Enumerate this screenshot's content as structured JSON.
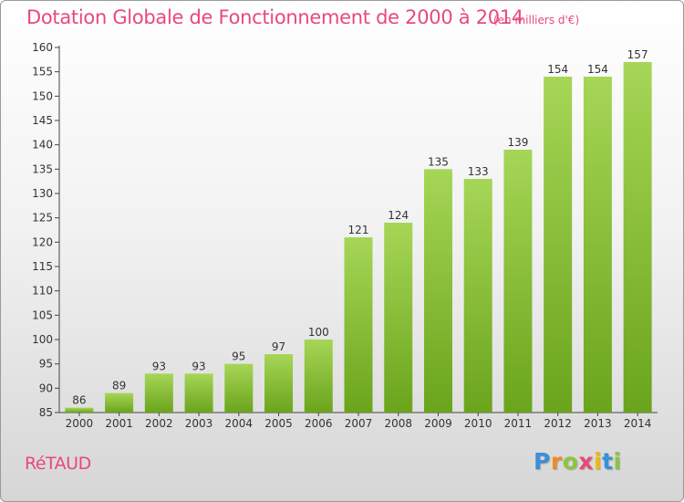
{
  "chart_data": {
    "type": "bar",
    "title": "Dotation Globale de Fonctionnement de 2000 à 2014",
    "subtitle": "(en milliers d'€)",
    "categories": [
      "2000",
      "2001",
      "2002",
      "2003",
      "2004",
      "2005",
      "2006",
      "2007",
      "2008",
      "2009",
      "2010",
      "2011",
      "2012",
      "2013",
      "2014"
    ],
    "values": [
      86,
      89,
      93,
      93,
      95,
      97,
      100,
      121,
      124,
      135,
      133,
      139,
      154,
      154,
      157
    ],
    "data_labels": [
      "86",
      "89",
      "93",
      "93",
      "95",
      "97",
      "100",
      "121",
      "124",
      "135",
      "133",
      "139",
      "154",
      "154",
      "157"
    ],
    "yticks": [
      85,
      90,
      95,
      100,
      105,
      110,
      115,
      120,
      125,
      130,
      135,
      140,
      145,
      150,
      155,
      160
    ],
    "ylim": [
      85,
      160
    ],
    "grid": false,
    "colors": {
      "bar_light": "#a6d656",
      "bar_dark": "#6aa41c"
    }
  },
  "footer": {
    "town": "RéTAUD",
    "logo_letters": [
      "P",
      "r",
      "o",
      "x",
      "i",
      "t",
      "i"
    ],
    "logo_colors": [
      "#3a8fd8",
      "#f08a24",
      "#8cc63f",
      "#e8497a",
      "#f5b800",
      "#3a8fd8",
      "#8cc63f"
    ]
  }
}
